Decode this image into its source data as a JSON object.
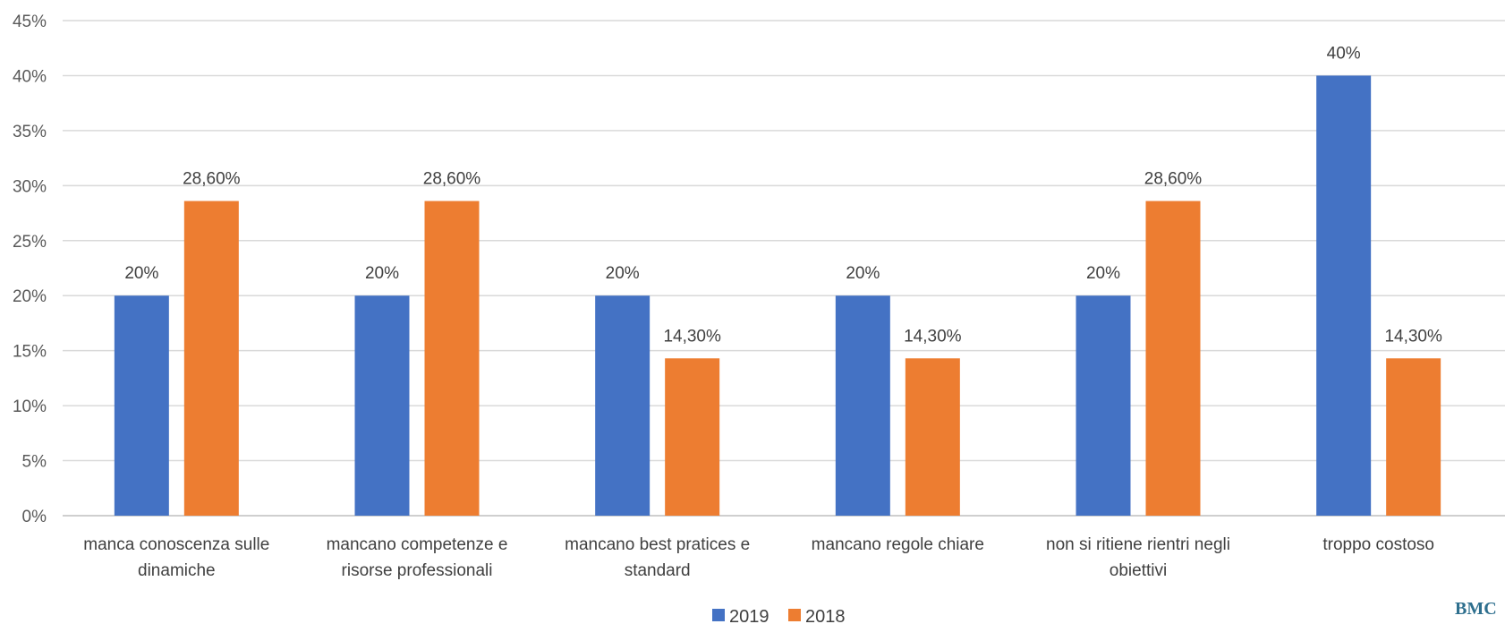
{
  "chart_data": {
    "type": "bar",
    "categories": [
      [
        "manca conoscenza sulle",
        "dinamiche"
      ],
      [
        "mancano competenze e",
        "risorse professionali"
      ],
      [
        "mancano best pratices e",
        "standard"
      ],
      [
        "mancano regole chiare"
      ],
      [
        "non si ritiene rientri negli",
        "obiettivi"
      ],
      [
        "troppo costoso"
      ]
    ],
    "series": [
      {
        "name": "2019",
        "color": "#4472C4",
        "values": [
          20,
          20,
          20,
          20,
          20,
          40
        ],
        "labels": [
          "20%",
          "20%",
          "20%",
          "20%",
          "20%",
          "40%"
        ]
      },
      {
        "name": "2018",
        "color": "#ED7D31",
        "values": [
          28.6,
          28.6,
          14.3,
          14.3,
          28.6,
          14.3
        ],
        "labels": [
          "28,60%",
          "28,60%",
          "14,30%",
          "14,30%",
          "28,60%",
          "14,30%"
        ]
      }
    ],
    "yticks": [
      "0%",
      "5%",
      "10%",
      "15%",
      "20%",
      "25%",
      "30%",
      "35%",
      "40%",
      "45%"
    ],
    "ylim": [
      0,
      45
    ],
    "grid": true,
    "legend_position": "bottom-center"
  },
  "watermark": "BMC"
}
